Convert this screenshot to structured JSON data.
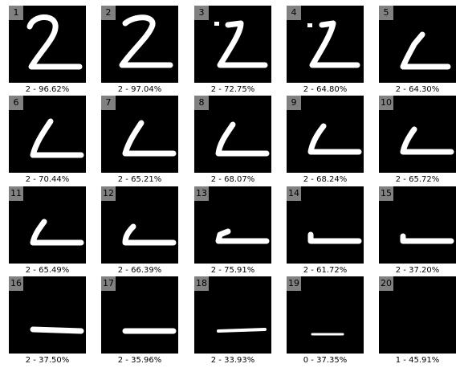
{
  "panels": [
    {
      "index": "1",
      "caption": "2 - 96.62%"
    },
    {
      "index": "2",
      "caption": "2 - 97.04%"
    },
    {
      "index": "3",
      "caption": "2 - 72.75%"
    },
    {
      "index": "4",
      "caption": "2 - 64.80%"
    },
    {
      "index": "5",
      "caption": "2 - 64.30%"
    },
    {
      "index": "6",
      "caption": "2 - 70.44%"
    },
    {
      "index": "7",
      "caption": "2 - 65.21%"
    },
    {
      "index": "8",
      "caption": "2 - 68.07%"
    },
    {
      "index": "9",
      "caption": "2 - 68.24%"
    },
    {
      "index": "10",
      "caption": "2 - 65.72%"
    },
    {
      "index": "11",
      "caption": "2 - 65.49%"
    },
    {
      "index": "12",
      "caption": "2 - 66.39%"
    },
    {
      "index": "13",
      "caption": "2 - 75.91%"
    },
    {
      "index": "14",
      "caption": "2 - 61.72%"
    },
    {
      "index": "15",
      "caption": "2 - 37.20%"
    },
    {
      "index": "16",
      "caption": "2 - 37.50%"
    },
    {
      "index": "17",
      "caption": "2 - 35.96%"
    },
    {
      "index": "18",
      "caption": "2 - 33.93%"
    },
    {
      "index": "19",
      "caption": "0 - 37.35%"
    },
    {
      "index": "20",
      "caption": "1 - 45.91%"
    }
  ]
}
